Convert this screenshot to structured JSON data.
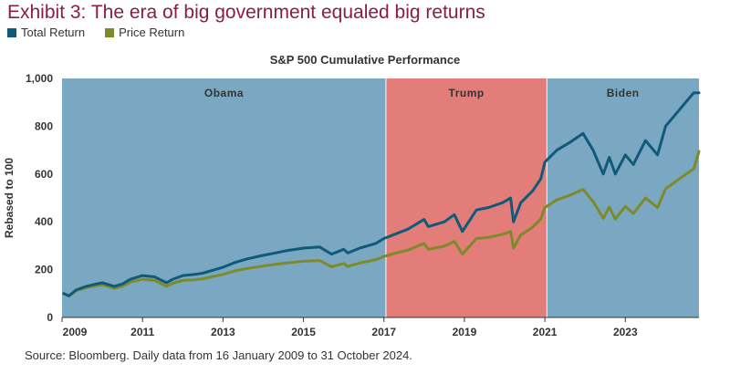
{
  "header": {
    "title": "Exhibit 3: The era of big government equaled big returns",
    "chart_title": "S&P 500 Cumulative Performance",
    "source": "Source: Bloomberg. Daily data from 16 January 2009 to 31 October 2024."
  },
  "colors": {
    "total": "#0f5a78",
    "price": "#7e8a2a",
    "obama": "#7aa8c2",
    "trump": "#e27d7a",
    "biden": "#7aa8c2"
  },
  "chart_data": {
    "type": "line",
    "title": "S&P 500 Cumulative Performance",
    "ylabel": "Rebased to 100",
    "xlabel": "",
    "xlim": [
      2009.0,
      2024.83
    ],
    "ylim": [
      0,
      1000
    ],
    "yticks": [
      0,
      200,
      400,
      600,
      800,
      1000
    ],
    "ytick_labels": [
      "0",
      "200",
      "400",
      "600",
      "800",
      "1,000"
    ],
    "xticks": [
      2009,
      2011,
      2013,
      2015,
      2017,
      2019,
      2021,
      2023
    ],
    "xtick_labels": [
      "2009",
      "2011",
      "2013",
      "2015",
      "2017",
      "2019",
      "2021",
      "2023"
    ],
    "legend": "top-left",
    "periods": [
      {
        "name": "Obama",
        "start": 2009.0,
        "end": 2017.05
      },
      {
        "name": "Trump",
        "start": 2017.05,
        "end": 2021.05
      },
      {
        "name": "Biden",
        "start": 2021.05,
        "end": 2024.83
      }
    ],
    "series": [
      {
        "name": "Total Return",
        "x": [
          2009.04,
          2009.17,
          2009.35,
          2009.6,
          2009.85,
          2010.0,
          2010.3,
          2010.5,
          2010.7,
          2011.0,
          2011.3,
          2011.6,
          2011.75,
          2012.0,
          2012.3,
          2012.5,
          2012.8,
          2013.0,
          2013.3,
          2013.6,
          2014.0,
          2014.3,
          2014.6,
          2015.0,
          2015.4,
          2015.7,
          2016.0,
          2016.1,
          2016.4,
          2016.8,
          2017.0,
          2017.3,
          2017.6,
          2018.0,
          2018.1,
          2018.5,
          2018.75,
          2018.95,
          2019.3,
          2019.6,
          2019.95,
          2020.15,
          2020.22,
          2020.4,
          2020.7,
          2020.9,
          2021.0,
          2021.3,
          2021.6,
          2021.95,
          2022.2,
          2022.45,
          2022.6,
          2022.75,
          2023.0,
          2023.2,
          2023.5,
          2023.8,
          2024.0,
          2024.3,
          2024.5,
          2024.7,
          2024.83
        ],
        "values": [
          100,
          90,
          115,
          130,
          140,
          145,
          130,
          140,
          160,
          175,
          170,
          145,
          160,
          175,
          180,
          185,
          200,
          210,
          230,
          245,
          260,
          270,
          280,
          290,
          295,
          265,
          285,
          270,
          290,
          310,
          330,
          350,
          370,
          410,
          380,
          400,
          430,
          360,
          450,
          460,
          480,
          500,
          400,
          480,
          530,
          580,
          650,
          700,
          730,
          770,
          700,
          600,
          670,
          600,
          680,
          640,
          740,
          680,
          800,
          860,
          900,
          940,
          940
        ]
      },
      {
        "name": "Price Return",
        "x": [
          2009.04,
          2009.17,
          2009.35,
          2009.6,
          2009.85,
          2010.0,
          2010.3,
          2010.5,
          2010.7,
          2011.0,
          2011.3,
          2011.6,
          2011.75,
          2012.0,
          2012.3,
          2012.5,
          2012.8,
          2013.0,
          2013.3,
          2013.6,
          2014.0,
          2014.3,
          2014.6,
          2015.0,
          2015.4,
          2015.7,
          2016.0,
          2016.1,
          2016.4,
          2016.8,
          2017.0,
          2017.3,
          2017.6,
          2018.0,
          2018.1,
          2018.5,
          2018.75,
          2018.95,
          2019.3,
          2019.6,
          2019.95,
          2020.15,
          2020.22,
          2020.4,
          2020.7,
          2020.9,
          2021.0,
          2021.3,
          2021.6,
          2021.95,
          2022.2,
          2022.45,
          2022.6,
          2022.75,
          2023.0,
          2023.2,
          2023.5,
          2023.8,
          2024.0,
          2024.3,
          2024.5,
          2024.7,
          2024.83
        ],
        "values": [
          100,
          90,
          112,
          125,
          133,
          137,
          122,
          130,
          148,
          160,
          155,
          130,
          143,
          155,
          158,
          162,
          173,
          180,
          195,
          205,
          215,
          222,
          228,
          235,
          238,
          212,
          226,
          213,
          228,
          242,
          255,
          270,
          282,
          310,
          285,
          298,
          318,
          265,
          330,
          335,
          348,
          360,
          290,
          345,
          378,
          412,
          460,
          492,
          510,
          536,
          485,
          415,
          462,
          412,
          465,
          435,
          500,
          460,
          538,
          575,
          598,
          622,
          695
        ]
      }
    ]
  }
}
